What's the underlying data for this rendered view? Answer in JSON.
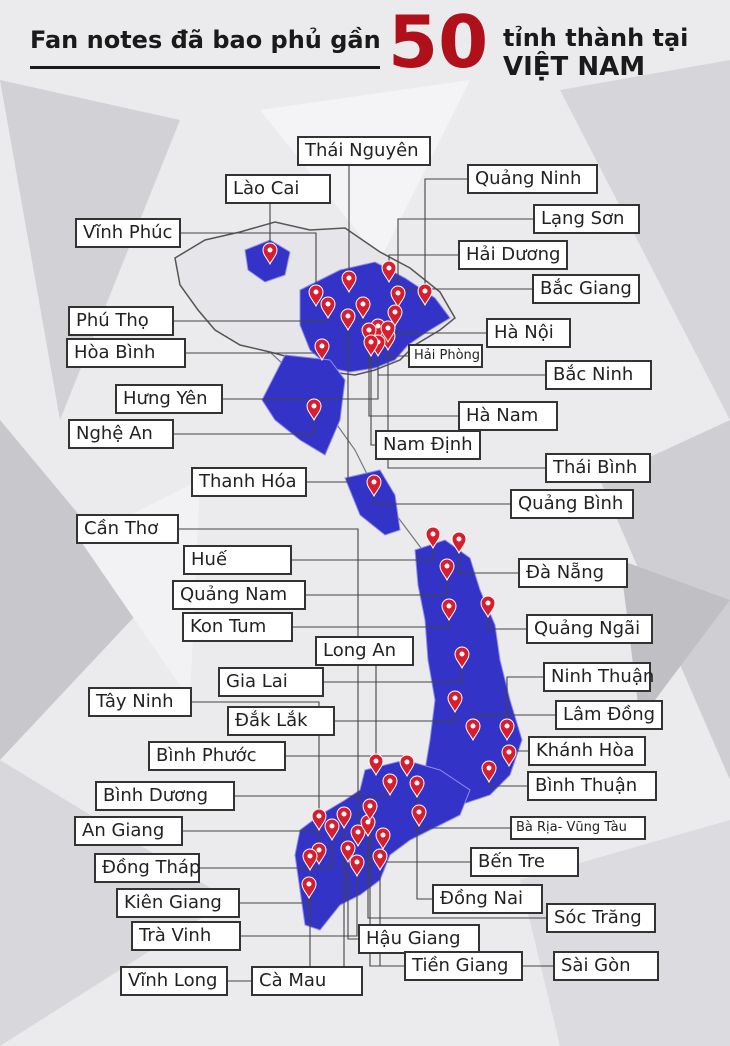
{
  "title": {
    "line1": "Fan notes đã bao phủ gần",
    "number": "50",
    "line2a": "tỉnh thành tại",
    "line2b": "VIỆT NAM"
  },
  "colors": {
    "province_fill": "#3333c8",
    "marker": "#d81e2c",
    "number": "#b0101a",
    "outline": "#555555"
  },
  "provinces": [
    "Thái Nguyên",
    "Lào Cai",
    "Quảng Ninh",
    "Lạng Sơn",
    "Vĩnh Phúc",
    "Hải Dương",
    "Bắc Giang",
    "Phú Thọ",
    "Hà Nội",
    "Hòa Bình",
    "Hải Phòng",
    "Bắc Ninh",
    "Hưng Yên",
    "Hà Nam",
    "Nghệ An",
    "Nam Định",
    "Thái Bình",
    "Thanh Hóa",
    "Quảng Bình",
    "Cần Thơ",
    "Huế",
    "Đà Nẵng",
    "Quảng Nam",
    "Quảng Ngãi",
    "Kon Tum",
    "Long An",
    "Ninh Thuận",
    "Gia Lai",
    "Tây Ninh",
    "Lâm Đồng",
    "Đắk Lắk",
    "Khánh Hòa",
    "Bình Phước",
    "Bình Thuận",
    "Bình Dương",
    "An Giang",
    "Bà Rịa- Vũng Tàu",
    "Bến Tre",
    "Đồng Tháp",
    "Đồng Nai",
    "Kiên Giang",
    "Sóc Trăng",
    "Trà Vinh",
    "Hậu Giang",
    "Vĩnh Long",
    "Cà Mau",
    "Tiền Giang",
    "Sài Gòn"
  ]
}
